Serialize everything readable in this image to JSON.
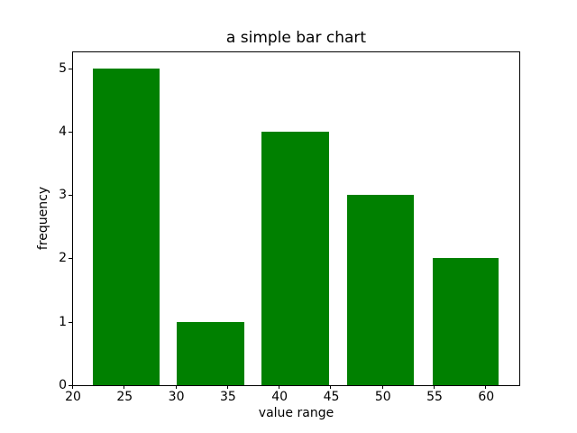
{
  "figure": {
    "background": "#ffffff"
  },
  "chart_data": {
    "type": "bar",
    "title": "a simple bar chart",
    "xlabel": "value range",
    "ylabel": "frequency",
    "bar_color": "#008000",
    "axis_color": "#000000",
    "text_color": "#000000",
    "grid": false,
    "legend": null,
    "xlim": [
      20.0,
      63.2
    ],
    "ylim": [
      0,
      5.25
    ],
    "xticks": [
      20,
      25,
      30,
      35,
      40,
      45,
      50,
      55,
      60
    ],
    "yticks": [
      0,
      1,
      2,
      3,
      4,
      5
    ],
    "bin_centers": [
      25.2,
      33.3,
      41.5,
      49.8,
      58.0
    ],
    "values": [
      5,
      1,
      4,
      3,
      2
    ],
    "bars": [
      {
        "x0": 21.9,
        "x1": 28.4,
        "height": 5
      },
      {
        "x0": 30.0,
        "x1": 36.6,
        "height": 1
      },
      {
        "x0": 38.2,
        "x1": 44.8,
        "height": 4
      },
      {
        "x0": 46.5,
        "x1": 53.0,
        "height": 3
      },
      {
        "x0": 54.8,
        "x1": 61.2,
        "height": 2
      }
    ]
  }
}
